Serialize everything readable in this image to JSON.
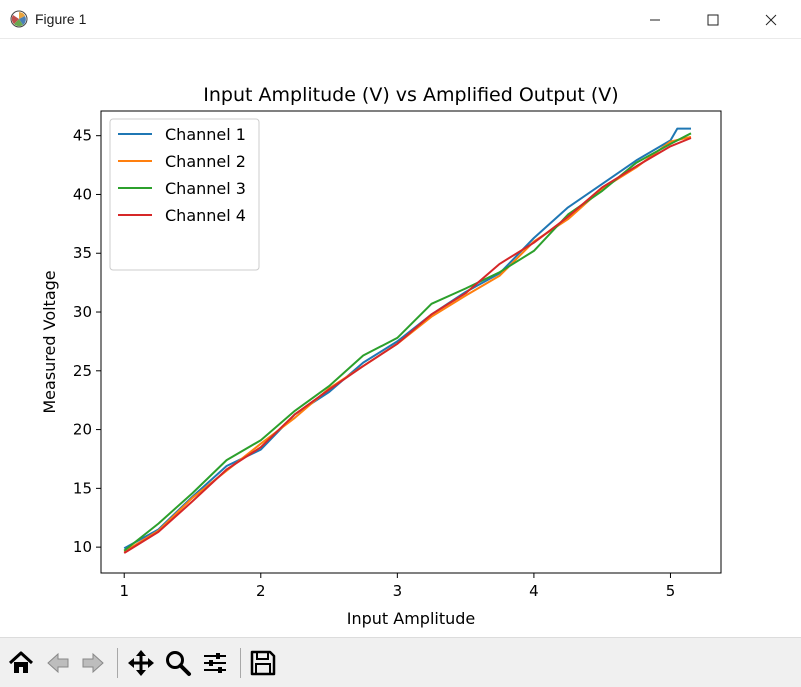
{
  "window": {
    "title": "Figure 1",
    "icons": [
      "matplotlib-logo-icon",
      "minimize-icon",
      "maximize-icon",
      "close-icon"
    ]
  },
  "toolbar": {
    "buttons": [
      "home-icon",
      "back-arrow-icon",
      "forward-arrow-icon",
      "pan-move-icon",
      "zoom-magnifier-icon",
      "configure-subplots-icon",
      "save-floppy-icon"
    ]
  },
  "chart_data": {
    "type": "line",
    "title": "Input Amplitude (V) vs Amplified Output (V)",
    "xlabel": "Input Amplitude",
    "ylabel": "Measured Voltage",
    "xlim": [
      0.83,
      5.37
    ],
    "ylim": [
      7.8,
      47.1
    ],
    "xticks": [
      1,
      2,
      3,
      4,
      5
    ],
    "yticks": [
      10,
      15,
      20,
      25,
      30,
      35,
      40,
      45
    ],
    "xtick_labels": [
      "1",
      "2",
      "3",
      "4",
      "5"
    ],
    "ytick_labels": [
      "10",
      "15",
      "20",
      "25",
      "30",
      "35",
      "40",
      "45"
    ],
    "grid": false,
    "legend_position": "upper-left",
    "series": [
      {
        "name": "Channel 1",
        "color": "#1f77b4",
        "x": [
          1.0,
          1.25,
          1.5,
          1.75,
          2.0,
          2.25,
          2.5,
          2.75,
          3.0,
          3.25,
          3.5,
          3.75,
          4.0,
          4.25,
          4.5,
          4.75,
          5.0,
          5.05,
          5.15
        ],
        "y": [
          9.9,
          11.5,
          14.3,
          16.9,
          18.3,
          21.3,
          23.2,
          25.7,
          27.5,
          29.8,
          31.7,
          33.3,
          36.3,
          38.9,
          40.9,
          42.9,
          44.6,
          45.6,
          45.6
        ]
      },
      {
        "name": "Channel 2",
        "color": "#ff7f0e",
        "x": [
          1.0,
          1.25,
          1.5,
          1.75,
          2.0,
          2.25,
          2.5,
          2.75,
          3.0,
          3.25,
          3.5,
          3.75,
          4.0,
          4.25,
          4.5,
          4.75,
          5.0,
          5.15
        ],
        "y": [
          9.6,
          11.4,
          14.2,
          16.5,
          18.8,
          21.0,
          23.5,
          25.4,
          27.3,
          29.6,
          31.4,
          33.1,
          36.0,
          37.9,
          40.5,
          42.3,
          44.5,
          44.9
        ]
      },
      {
        "name": "Channel 3",
        "color": "#2ca02c",
        "x": [
          1.0,
          1.25,
          1.5,
          1.75,
          2.0,
          2.25,
          2.5,
          2.75,
          3.0,
          3.25,
          3.5,
          3.75,
          4.0,
          4.25,
          4.5,
          4.75,
          5.0,
          5.15
        ],
        "y": [
          9.7,
          12.0,
          14.6,
          17.4,
          19.1,
          21.6,
          23.7,
          26.3,
          27.8,
          30.7,
          32.0,
          33.4,
          35.2,
          38.3,
          40.3,
          42.7,
          44.3,
          45.2
        ]
      },
      {
        "name": "Channel 4",
        "color": "#d62728",
        "x": [
          1.0,
          1.25,
          1.5,
          1.75,
          2.0,
          2.25,
          2.5,
          2.75,
          3.0,
          3.25,
          3.5,
          3.75,
          4.0,
          4.25,
          4.5,
          4.75,
          5.0,
          5.15
        ],
        "y": [
          9.5,
          11.3,
          13.9,
          16.6,
          18.5,
          21.3,
          23.4,
          25.4,
          27.3,
          29.8,
          31.6,
          34.1,
          35.9,
          38.1,
          40.6,
          42.4,
          44.1,
          44.8
        ]
      }
    ]
  }
}
